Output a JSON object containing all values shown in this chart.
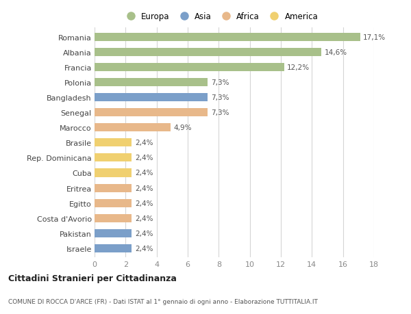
{
  "categories": [
    "Israele",
    "Pakistan",
    "Costa d'Avorio",
    "Egitto",
    "Eritrea",
    "Cuba",
    "Rep. Dominicana",
    "Brasile",
    "Marocco",
    "Senegal",
    "Bangladesh",
    "Polonia",
    "Francia",
    "Albania",
    "Romania"
  ],
  "values": [
    2.4,
    2.4,
    2.4,
    2.4,
    2.4,
    2.4,
    2.4,
    2.4,
    4.9,
    7.3,
    7.3,
    7.3,
    12.2,
    14.6,
    17.1
  ],
  "continents": [
    "Asia",
    "Asia",
    "Africa",
    "Africa",
    "Africa",
    "America",
    "America",
    "America",
    "Africa",
    "Africa",
    "Asia",
    "Europa",
    "Europa",
    "Europa",
    "Europa"
  ],
  "labels": [
    "2,4%",
    "2,4%",
    "2,4%",
    "2,4%",
    "2,4%",
    "2,4%",
    "2,4%",
    "2,4%",
    "4,9%",
    "7,3%",
    "7,3%",
    "7,3%",
    "12,2%",
    "14,6%",
    "17,1%"
  ],
  "colors": {
    "Europa": "#a8c08a",
    "Asia": "#7b9fc9",
    "Africa": "#e8b88a",
    "America": "#f0d070"
  },
  "legend_order": [
    "Europa",
    "Asia",
    "Africa",
    "America"
  ],
  "xlim": [
    0,
    18
  ],
  "xticks": [
    0,
    2,
    4,
    6,
    8,
    10,
    12,
    14,
    16,
    18
  ],
  "title": "Cittadini Stranieri per Cittadinanza",
  "subtitle": "COMUNE DI ROCCA D'ARCE (FR) - Dati ISTAT al 1° gennaio di ogni anno - Elaborazione TUTTITALIA.IT",
  "background_color": "#ffffff",
  "grid_color": "#d5d5d5",
  "bar_height": 0.55
}
